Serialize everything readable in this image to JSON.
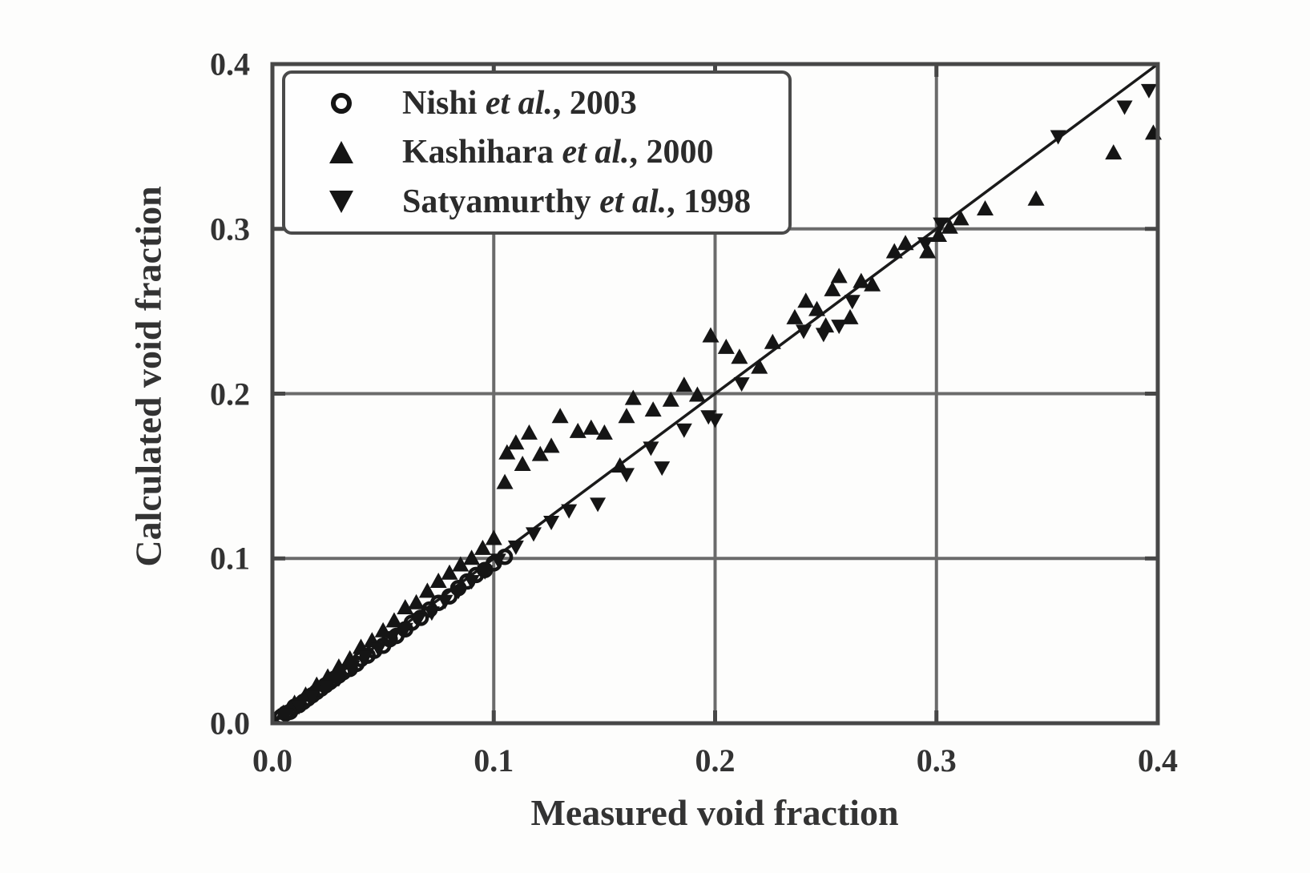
{
  "chart_data": {
    "type": "scatter",
    "title": "",
    "xlabel": "Measured void fraction",
    "ylabel": "Calculated void fraction",
    "xlim": [
      0.0,
      0.4
    ],
    "ylim": [
      0.0,
      0.4
    ],
    "x_ticks": [
      "0.0",
      "0.1",
      "0.2",
      "0.3",
      "0.4"
    ],
    "y_ticks": [
      "0.0",
      "0.1",
      "0.2",
      "0.3",
      "0.4"
    ],
    "grid": true,
    "reference_line": "y = x diagonal from (0,0) to (0.4,0.4)",
    "legend_position": "upper-left-inside",
    "marker_color": "#151515",
    "grid_color": "#6b6b6b",
    "border_color": "#474747",
    "series": [
      {
        "name": "Nishi et al., 2003",
        "name_parts": {
          "prefix": "Nishi ",
          "etal": "et al.",
          "suffix": ", 2003"
        },
        "marker": "circle-open",
        "points": [
          [
            0.004,
            0.004
          ],
          [
            0.006,
            0.006
          ],
          [
            0.008,
            0.007
          ],
          [
            0.01,
            0.01
          ],
          [
            0.012,
            0.011
          ],
          [
            0.014,
            0.013
          ],
          [
            0.016,
            0.015
          ],
          [
            0.018,
            0.017
          ],
          [
            0.02,
            0.019
          ],
          [
            0.022,
            0.021
          ],
          [
            0.024,
            0.023
          ],
          [
            0.026,
            0.025
          ],
          [
            0.028,
            0.027
          ],
          [
            0.03,
            0.029
          ],
          [
            0.032,
            0.031
          ],
          [
            0.035,
            0.033
          ],
          [
            0.038,
            0.036
          ],
          [
            0.04,
            0.039
          ],
          [
            0.043,
            0.041
          ],
          [
            0.046,
            0.044
          ],
          [
            0.05,
            0.047
          ],
          [
            0.053,
            0.051
          ],
          [
            0.056,
            0.053
          ],
          [
            0.06,
            0.057
          ],
          [
            0.063,
            0.061
          ],
          [
            0.067,
            0.064
          ],
          [
            0.071,
            0.069
          ],
          [
            0.075,
            0.073
          ],
          [
            0.08,
            0.077
          ],
          [
            0.084,
            0.082
          ],
          [
            0.088,
            0.086
          ],
          [
            0.092,
            0.09
          ],
          [
            0.096,
            0.093
          ],
          [
            0.1,
            0.097
          ],
          [
            0.105,
            0.101
          ]
        ]
      },
      {
        "name": "Kashihara et al., 2000",
        "name_parts": {
          "prefix": "Kashihara ",
          "etal": "et al.",
          "suffix": ", 2000"
        },
        "marker": "triangle-up-filled",
        "points": [
          [
            0.005,
            0.006
          ],
          [
            0.01,
            0.012
          ],
          [
            0.015,
            0.017
          ],
          [
            0.02,
            0.023
          ],
          [
            0.025,
            0.028
          ],
          [
            0.03,
            0.034
          ],
          [
            0.035,
            0.039
          ],
          [
            0.04,
            0.046
          ],
          [
            0.045,
            0.05
          ],
          [
            0.05,
            0.056
          ],
          [
            0.055,
            0.062
          ],
          [
            0.06,
            0.07
          ],
          [
            0.065,
            0.073
          ],
          [
            0.07,
            0.08
          ],
          [
            0.075,
            0.086
          ],
          [
            0.08,
            0.091
          ],
          [
            0.085,
            0.096
          ],
          [
            0.09,
            0.1
          ],
          [
            0.095,
            0.106
          ],
          [
            0.1,
            0.112
          ],
          [
            0.105,
            0.146
          ],
          [
            0.106,
            0.164
          ],
          [
            0.11,
            0.17
          ],
          [
            0.113,
            0.157
          ],
          [
            0.116,
            0.176
          ],
          [
            0.121,
            0.163
          ],
          [
            0.126,
            0.168
          ],
          [
            0.13,
            0.186
          ],
          [
            0.138,
            0.177
          ],
          [
            0.144,
            0.179
          ],
          [
            0.15,
            0.176
          ],
          [
            0.157,
            0.156
          ],
          [
            0.16,
            0.186
          ],
          [
            0.163,
            0.197
          ],
          [
            0.172,
            0.19
          ],
          [
            0.18,
            0.196
          ],
          [
            0.186,
            0.205
          ],
          [
            0.192,
            0.199
          ],
          [
            0.198,
            0.235
          ],
          [
            0.205,
            0.228
          ],
          [
            0.211,
            0.222
          ],
          [
            0.22,
            0.216
          ],
          [
            0.226,
            0.231
          ],
          [
            0.236,
            0.246
          ],
          [
            0.241,
            0.256
          ],
          [
            0.246,
            0.251
          ],
          [
            0.25,
            0.241
          ],
          [
            0.253,
            0.263
          ],
          [
            0.256,
            0.271
          ],
          [
            0.261,
            0.246
          ],
          [
            0.266,
            0.268
          ],
          [
            0.271,
            0.266
          ],
          [
            0.281,
            0.286
          ],
          [
            0.286,
            0.291
          ],
          [
            0.296,
            0.286
          ],
          [
            0.301,
            0.296
          ],
          [
            0.306,
            0.301
          ],
          [
            0.311,
            0.306
          ],
          [
            0.322,
            0.312
          ],
          [
            0.345,
            0.318
          ],
          [
            0.38,
            0.346
          ],
          [
            0.398,
            0.358
          ]
        ]
      },
      {
        "name": "Satyamurthy et al., 1998",
        "name_parts": {
          "prefix": "Satyamurthy ",
          "etal": "et al.",
          "suffix": ", 1998"
        },
        "marker": "triangle-down-filled",
        "points": [
          [
            0.006,
            0.005
          ],
          [
            0.012,
            0.01
          ],
          [
            0.018,
            0.016
          ],
          [
            0.024,
            0.022
          ],
          [
            0.03,
            0.027
          ],
          [
            0.036,
            0.034
          ],
          [
            0.042,
            0.04
          ],
          [
            0.048,
            0.045
          ],
          [
            0.054,
            0.052
          ],
          [
            0.06,
            0.057
          ],
          [
            0.066,
            0.063
          ],
          [
            0.072,
            0.067
          ],
          [
            0.078,
            0.074
          ],
          [
            0.084,
            0.08
          ],
          [
            0.09,
            0.086
          ],
          [
            0.096,
            0.092
          ],
          [
            0.102,
            0.099
          ],
          [
            0.11,
            0.107
          ],
          [
            0.118,
            0.115
          ],
          [
            0.126,
            0.122
          ],
          [
            0.134,
            0.129
          ],
          [
            0.147,
            0.133
          ],
          [
            0.16,
            0.151
          ],
          [
            0.171,
            0.167
          ],
          [
            0.176,
            0.155
          ],
          [
            0.186,
            0.178
          ],
          [
            0.197,
            0.186
          ],
          [
            0.2,
            0.184
          ],
          [
            0.212,
            0.206
          ],
          [
            0.24,
            0.238
          ],
          [
            0.249,
            0.236
          ],
          [
            0.256,
            0.241
          ],
          [
            0.262,
            0.256
          ],
          [
            0.295,
            0.291
          ],
          [
            0.302,
            0.303
          ],
          [
            0.355,
            0.356
          ],
          [
            0.385,
            0.374
          ],
          [
            0.396,
            0.384
          ]
        ]
      }
    ]
  }
}
